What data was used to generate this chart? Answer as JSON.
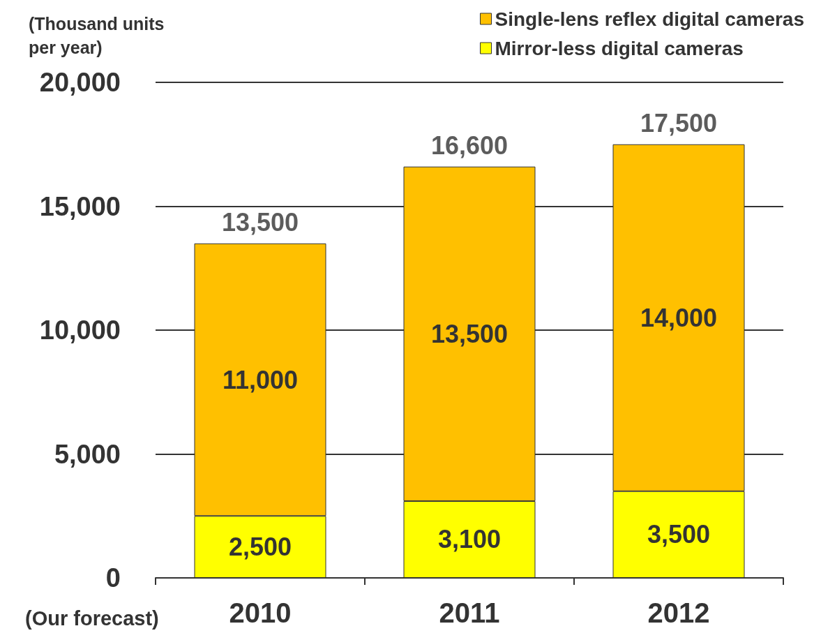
{
  "chart_data": {
    "type": "bar",
    "stacked": true,
    "ylabel": "(Thousand units per year)",
    "annotations": [
      "(Our forecast)"
    ],
    "categories": [
      "2010",
      "2011",
      "2012"
    ],
    "series": [
      {
        "name": "Mirror-less digital cameras",
        "color": "#ffff00",
        "values": [
          2500,
          3100,
          3500
        ],
        "value_labels": [
          "2,500",
          "3,100",
          "3,500"
        ]
      },
      {
        "name": "Single-lens reflex digital cameras",
        "color": "#ffc000",
        "values": [
          11000,
          13500,
          14000
        ],
        "value_labels": [
          "11,000",
          "13,500",
          "14,000"
        ]
      }
    ],
    "totals": [
      "13,500",
      "16,600",
      "17,500"
    ],
    "ylim": [
      0,
      20000
    ],
    "yticks": [
      {
        "value": 0,
        "label": "0"
      },
      {
        "value": 5000,
        "label": "5,000"
      },
      {
        "value": 10000,
        "label": "10,000"
      },
      {
        "value": 15000,
        "label": "15,000"
      },
      {
        "value": 20000,
        "label": "20,000"
      }
    ],
    "grid": "y",
    "legend": "top right"
  }
}
